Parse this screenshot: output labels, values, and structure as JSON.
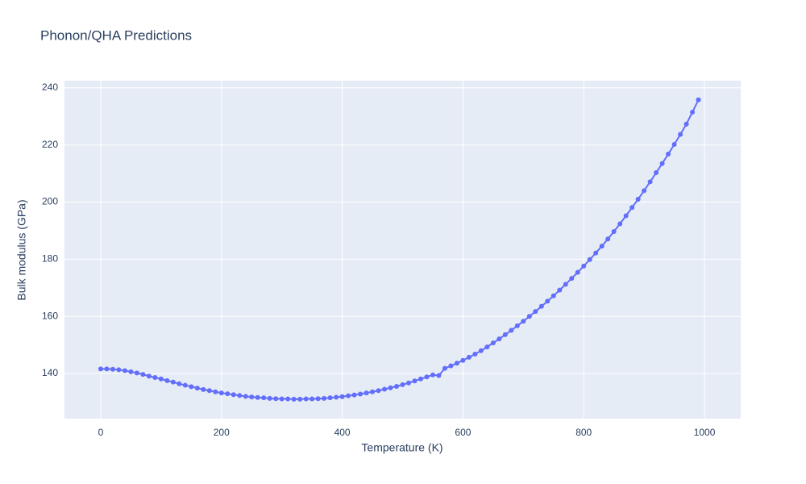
{
  "chart_data": {
    "type": "line",
    "title": "Phonon/QHA Predictions",
    "x_label": "Temperature (K)",
    "y_label": "Bulk modulus (GPa)",
    "x": [
      0,
      10,
      20,
      30,
      40,
      50,
      60,
      70,
      80,
      90,
      100,
      110,
      120,
      130,
      140,
      150,
      160,
      170,
      180,
      190,
      200,
      210,
      220,
      230,
      240,
      250,
      260,
      270,
      280,
      290,
      300,
      310,
      320,
      330,
      340,
      350,
      360,
      370,
      380,
      390,
      400,
      410,
      420,
      430,
      440,
      450,
      460,
      470,
      480,
      490,
      500,
      510,
      520,
      530,
      540,
      550,
      560,
      570,
      580,
      590,
      600,
      610,
      620,
      630,
      640,
      650,
      660,
      670,
      680,
      690,
      700,
      710,
      720,
      730,
      740,
      750,
      760,
      770,
      780,
      790,
      800,
      810,
      820,
      830,
      840,
      850,
      860,
      870,
      880,
      890,
      900,
      910,
      920,
      930,
      940,
      950,
      960,
      970,
      980,
      990
    ],
    "series": [
      {
        "color": "#636efa",
        "values": [
          141.6,
          141.6,
          141.5,
          141.3,
          141.0,
          140.6,
          140.2,
          139.7,
          139.1,
          138.6,
          138.1,
          137.5,
          137.0,
          136.4,
          135.9,
          135.4,
          134.9,
          134.4,
          134.0,
          133.6,
          133.2,
          132.9,
          132.6,
          132.3,
          132.0,
          131.8,
          131.6,
          131.5,
          131.3,
          131.2,
          131.1,
          131.1,
          131.0,
          131.0,
          131.1,
          131.1,
          131.2,
          131.3,
          131.5,
          131.7,
          131.9,
          132.2,
          132.5,
          132.8,
          133.2,
          133.6,
          134.0,
          134.5,
          135.0,
          135.5,
          136.1,
          136.7,
          137.4,
          138.1,
          138.8,
          139.5,
          139.3,
          141.8,
          142.7,
          143.6,
          144.6,
          145.7,
          146.8,
          148.0,
          149.3,
          150.7,
          152.1,
          153.6,
          155.1,
          156.7,
          158.3,
          160.0,
          161.7,
          163.5,
          165.3,
          167.2,
          169.2,
          171.2,
          173.3,
          175.4,
          177.6,
          179.9,
          182.2,
          184.6,
          187.1,
          189.7,
          192.4,
          195.2,
          198.1,
          201.0,
          204.0,
          207.1,
          210.3,
          213.5,
          216.8,
          220.2,
          223.7,
          227.3,
          231.5,
          235.8
        ]
      }
    ],
    "xlim": [
      -60,
      1060
    ],
    "xticks": [
      0,
      200,
      400,
      600,
      800,
      1000
    ],
    "ylim": [
      124.2,
      242.5
    ],
    "yticks": [
      140,
      160,
      180,
      200,
      220,
      240
    ],
    "grid": true
  }
}
